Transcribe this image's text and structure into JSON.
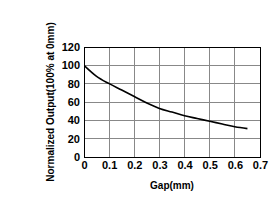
{
  "chart_data": {
    "type": "line",
    "x_label": "Gap(mm)",
    "y_label": "Normalized Output(100% at 0mm)",
    "x": [
      0,
      0.05,
      0.1,
      0.15,
      0.2,
      0.25,
      0.3,
      0.35,
      0.4,
      0.45,
      0.5,
      0.55,
      0.6,
      0.65
    ],
    "values": [
      100,
      88,
      80,
      73,
      66,
      59,
      53,
      49,
      45,
      42,
      39,
      36,
      33,
      31
    ],
    "color": "#000000",
    "line_style": "solid",
    "xlim": [
      0,
      0.7
    ],
    "xticks": [
      0,
      0.1,
      0.2,
      0.3,
      0.4,
      0.5,
      0.6,
      0.7
    ],
    "ylim": [
      0,
      120
    ],
    "yticks": [
      0,
      20,
      40,
      60,
      80,
      100,
      120
    ],
    "grid": true
  }
}
